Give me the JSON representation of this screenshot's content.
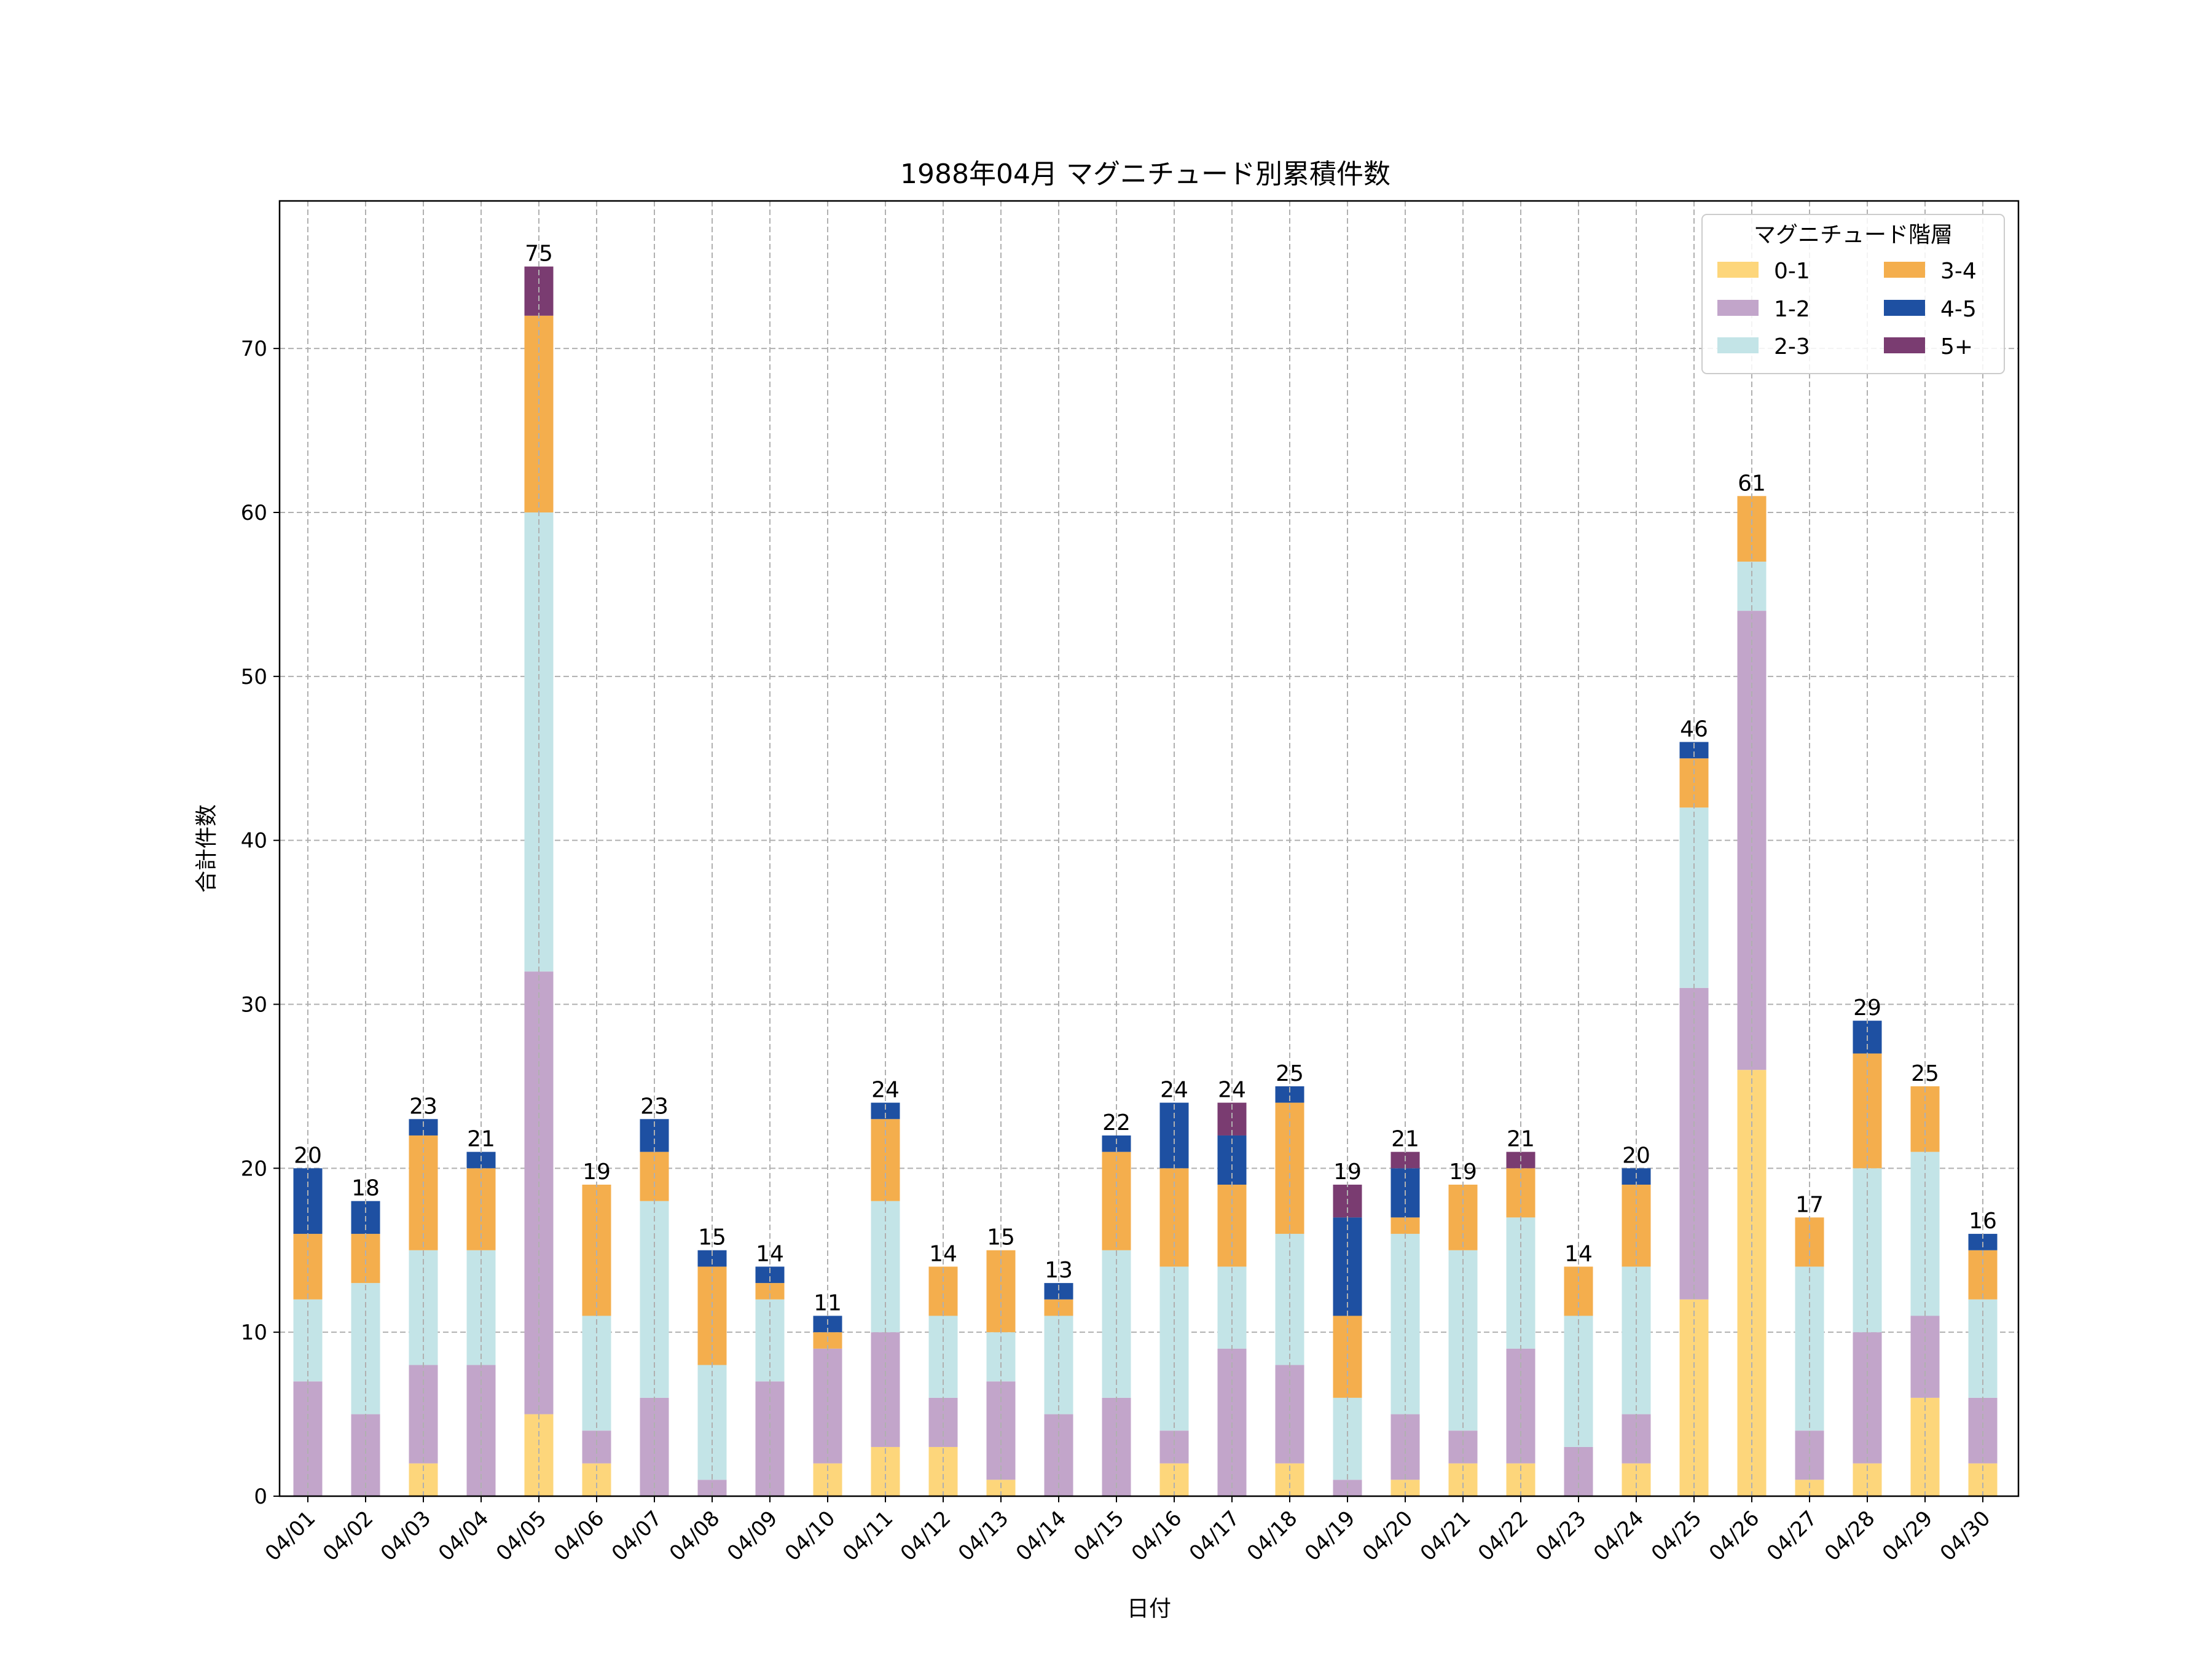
{
  "chart_data": {
    "type": "bar",
    "stacked": true,
    "title": "1988年04月 マグニチュード別累積件数",
    "xlabel": "日付",
    "ylabel": "合計件数",
    "ylim": [
      0,
      79
    ],
    "yticks": [
      0,
      10,
      20,
      30,
      40,
      50,
      60,
      70
    ],
    "grid": true,
    "legend": {
      "title": "マグニチュード階層",
      "placement": "top-right",
      "ncol": 2
    },
    "categories": [
      "04/01",
      "04/02",
      "04/03",
      "04/04",
      "04/05",
      "04/06",
      "04/07",
      "04/08",
      "04/09",
      "04/10",
      "04/11",
      "04/12",
      "04/13",
      "04/14",
      "04/15",
      "04/16",
      "04/17",
      "04/18",
      "04/19",
      "04/20",
      "04/21",
      "04/22",
      "04/23",
      "04/24",
      "04/25",
      "04/26",
      "04/27",
      "04/28",
      "04/29",
      "04/30"
    ],
    "series": [
      {
        "name": "0-1",
        "color": "#FDD67B",
        "values": [
          0,
          0,
          2,
          0,
          5,
          2,
          0,
          0,
          0,
          2,
          3,
          3,
          1,
          0,
          0,
          2,
          0,
          2,
          0,
          1,
          2,
          2,
          0,
          2,
          12,
          26,
          1,
          2,
          6,
          2
        ]
      },
      {
        "name": "1-2",
        "color": "#C2A5CA",
        "values": [
          7,
          5,
          6,
          8,
          27,
          2,
          6,
          1,
          7,
          7,
          7,
          3,
          6,
          5,
          6,
          2,
          9,
          6,
          1,
          4,
          2,
          7,
          3,
          3,
          19,
          28,
          3,
          8,
          5,
          4
        ]
      },
      {
        "name": "2-3",
        "color": "#C3E4E7",
        "values": [
          5,
          8,
          7,
          7,
          28,
          7,
          12,
          7,
          5,
          0,
          8,
          5,
          3,
          6,
          9,
          10,
          5,
          8,
          5,
          11,
          11,
          8,
          8,
          9,
          11,
          3,
          10,
          10,
          10,
          6
        ]
      },
      {
        "name": "3-4",
        "color": "#F4AE4D",
        "values": [
          4,
          3,
          7,
          5,
          12,
          8,
          3,
          6,
          1,
          1,
          5,
          3,
          5,
          1,
          6,
          6,
          5,
          8,
          5,
          1,
          4,
          3,
          3,
          5,
          3,
          4,
          3,
          7,
          4,
          3
        ]
      },
      {
        "name": "4-5",
        "color": "#1E50A2",
        "values": [
          4,
          2,
          1,
          1,
          0,
          0,
          2,
          1,
          1,
          1,
          1,
          0,
          0,
          1,
          1,
          4,
          3,
          1,
          6,
          3,
          0,
          0,
          0,
          1,
          1,
          0,
          0,
          2,
          0,
          1
        ]
      },
      {
        "name": "5+",
        "color": "#7A3C71",
        "values": [
          0,
          0,
          0,
          0,
          3,
          0,
          0,
          0,
          0,
          0,
          0,
          0,
          0,
          0,
          0,
          0,
          2,
          0,
          2,
          1,
          0,
          1,
          0,
          0,
          0,
          0,
          0,
          0,
          0,
          0
        ]
      }
    ],
    "totals": [
      20,
      18,
      23,
      21,
      75,
      19,
      23,
      15,
      14,
      11,
      24,
      14,
      15,
      13,
      22,
      24,
      24,
      25,
      19,
      21,
      19,
      21,
      14,
      20,
      46,
      61,
      17,
      29,
      25,
      16
    ]
  }
}
